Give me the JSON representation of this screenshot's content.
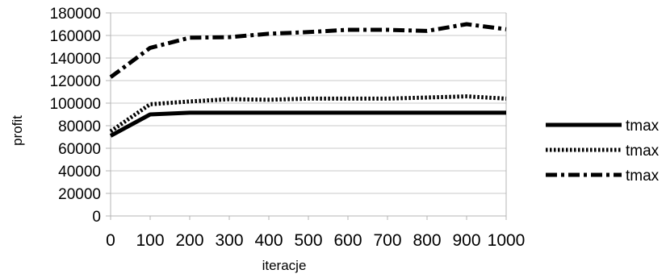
{
  "chart_data": {
    "type": "line",
    "title": "",
    "xlabel": "iteracje",
    "ylabel": "profit",
    "x": [
      0,
      100,
      200,
      300,
      400,
      500,
      600,
      700,
      800,
      900,
      1000
    ],
    "xticks": [
      "0",
      "100",
      "200",
      "300",
      "400",
      "500",
      "600",
      "700",
      "800",
      "900",
      "1000"
    ],
    "xlim": [
      0,
      1000
    ],
    "yticks": [
      "0",
      "20000",
      "40000",
      "60000",
      "80000",
      "100000",
      "120000",
      "140000",
      "160000",
      "180000"
    ],
    "ylim": [
      0,
      180000
    ],
    "grid": "horizontal",
    "legend_position": "right",
    "series": [
      {
        "name": "tmax",
        "style": "solid",
        "values": [
          71000,
          90000,
          91500,
          91500,
          91500,
          91500,
          91500,
          91500,
          91500,
          91500,
          91500
        ]
      },
      {
        "name": "tmax",
        "style": "dotted",
        "values": [
          75000,
          99000,
          101500,
          103500,
          103000,
          104000,
          104000,
          104000,
          105000,
          106000,
          104000
        ]
      },
      {
        "name": "tmax",
        "style": "dash-dot",
        "values": [
          123000,
          149000,
          158000,
          158500,
          161500,
          163000,
          165000,
          165000,
          164000,
          170000,
          165500
        ]
      }
    ],
    "colors": {
      "line": "#000000",
      "grid": "#c8c8c8",
      "axis": "#b4b4b4"
    }
  }
}
